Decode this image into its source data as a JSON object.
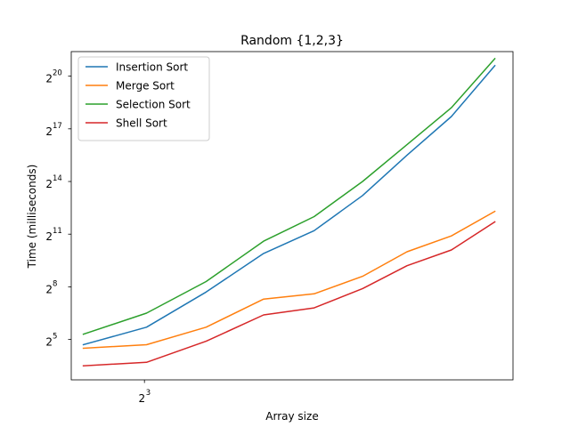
{
  "chart_data": {
    "type": "line",
    "title": "Random {1,2,3}",
    "xlabel": "Array size",
    "ylabel": "Time (milliseconds)",
    "x_scale": "log2",
    "y_scale": "log2",
    "xlim_log2": [
      1.55,
      10.3
    ],
    "ylim_log2": [
      2.7,
      21.4
    ],
    "x_ticks": [
      {
        "log2": 3,
        "base": "2",
        "exp": "3"
      }
    ],
    "y_ticks": [
      {
        "log2": 5,
        "base": "2",
        "exp": "5"
      },
      {
        "log2": 8,
        "base": "2",
        "exp": "8"
      },
      {
        "log2": 11,
        "base": "2",
        "exp": "11"
      },
      {
        "log2": 14,
        "base": "2",
        "exp": "14"
      },
      {
        "log2": 17,
        "base": "2",
        "exp": "17"
      },
      {
        "log2": 20,
        "base": "2",
        "exp": "20"
      }
    ],
    "x_log2": [
      1.79,
      3.04,
      4.22,
      5.36,
      6.36,
      7.32,
      8.2,
      9.08,
      9.94
    ],
    "series": [
      {
        "name": "Insertion Sort",
        "color": "#1f77b4",
        "y_log2": [
          4.7,
          5.7,
          7.7,
          9.9,
          11.2,
          13.2,
          15.5,
          17.7,
          20.6
        ]
      },
      {
        "name": "Merge Sort",
        "color": "#ff7f0e",
        "y_log2": [
          4.5,
          4.7,
          5.7,
          7.3,
          7.6,
          8.6,
          10.0,
          10.9,
          12.3
        ]
      },
      {
        "name": "Selection Sort",
        "color": "#2ca02c",
        "y_log2": [
          5.3,
          6.5,
          8.3,
          10.6,
          12.0,
          14.0,
          16.1,
          18.2,
          21.0
        ]
      },
      {
        "name": "Shell Sort",
        "color": "#d62728",
        "y_log2": [
          3.5,
          3.7,
          4.9,
          6.4,
          6.8,
          7.9,
          9.2,
          10.1,
          11.7
        ]
      }
    ],
    "grid": false,
    "legend_placement": "top-left"
  }
}
